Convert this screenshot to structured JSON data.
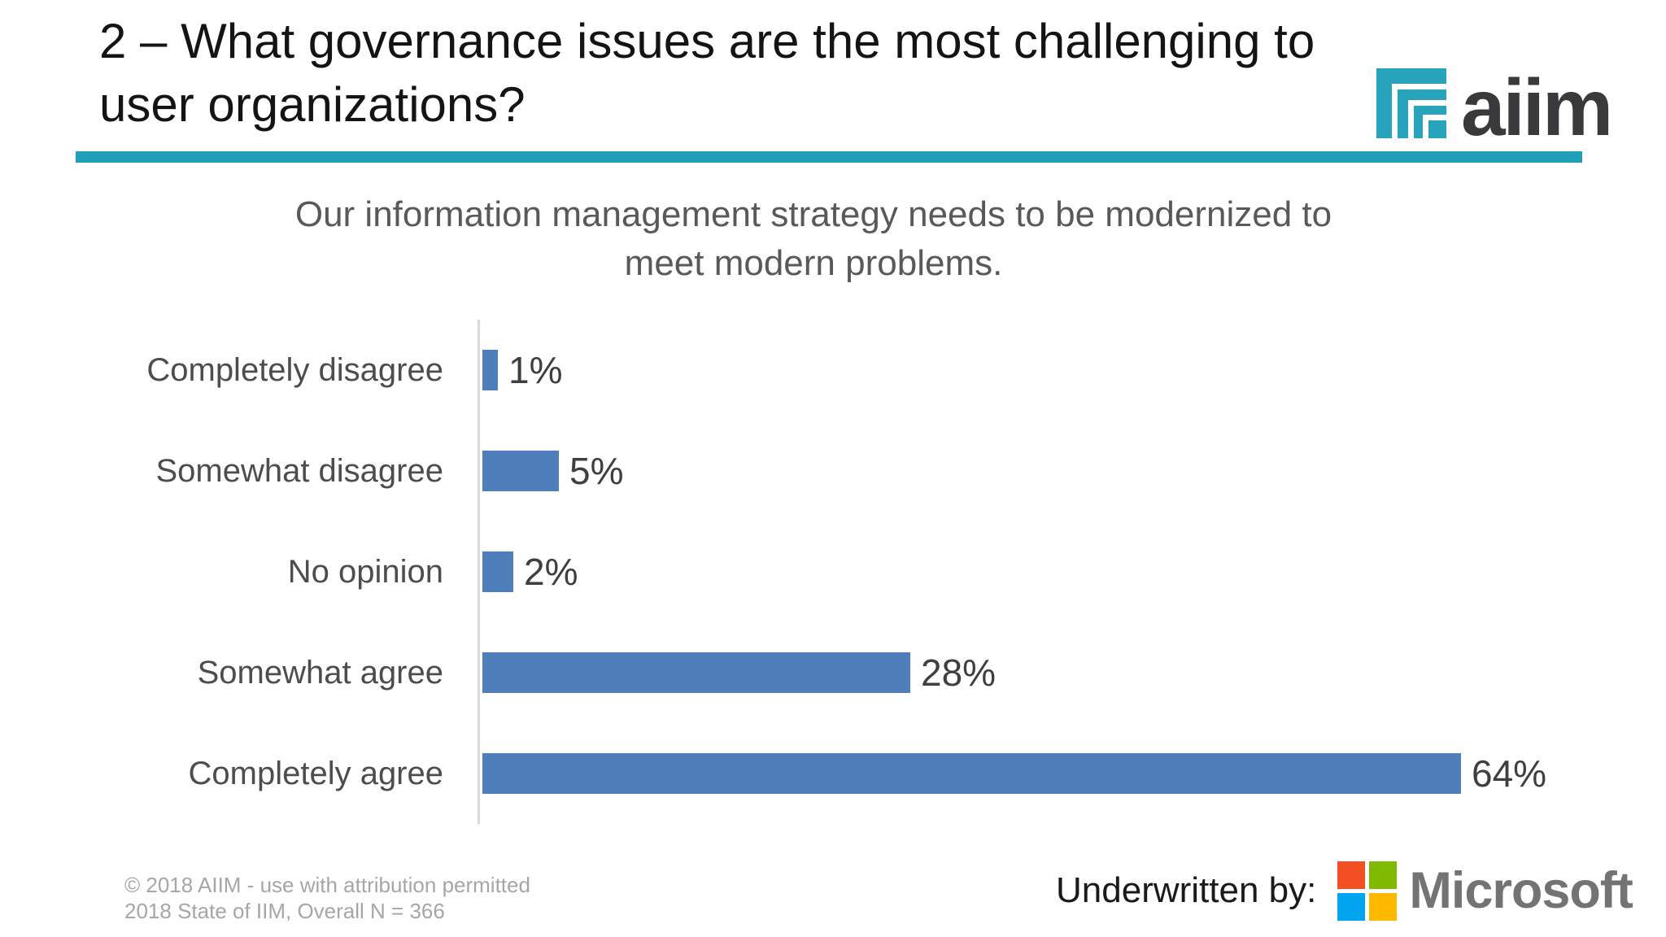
{
  "header": {
    "title": "2 – What governance issues are the most challenging to user organizations?",
    "title_line1": "2 – What governance issues are the most challenging to",
    "title_line2": "user organizations?",
    "logo_text": "aiim"
  },
  "chart_data": {
    "type": "bar",
    "orientation": "horizontal",
    "title": "Our information management strategy needs to be modernized to meet modern problems.",
    "title_line1": "Our information management strategy needs to be modernized to",
    "title_line2": "meet modern problems.",
    "categories": [
      "Completely disagree",
      "Somewhat disagree",
      "No opinion",
      "Somewhat agree",
      "Completely agree"
    ],
    "values": [
      1,
      5,
      2,
      28,
      64
    ],
    "value_labels": [
      "1%",
      "5%",
      "2%",
      "28%",
      "64%"
    ],
    "unit": "percent",
    "xlim": [
      0,
      70
    ],
    "grid": false,
    "legend": "none",
    "bar_color": "#4E7FBA",
    "axis_line_color": "#D9D9D9"
  },
  "footer": {
    "copyright_line1": "© 2018 AIIM - use with attribution permitted",
    "copyright_line2": "2018 State of IIM, Overall N = 366",
    "underwritten_label": "Underwritten by:",
    "microsoft_text": "Microsoft"
  },
  "colors": {
    "accent_teal": "#1FA0B8",
    "aiim_icon_teal": "#28A3BC",
    "bar_blue": "#4E7FBA",
    "ms_red": "#F25022",
    "ms_green": "#7FBA00",
    "ms_blue": "#00A4EF",
    "ms_yellow": "#FFB900",
    "ms_text_gray": "#737373"
  }
}
